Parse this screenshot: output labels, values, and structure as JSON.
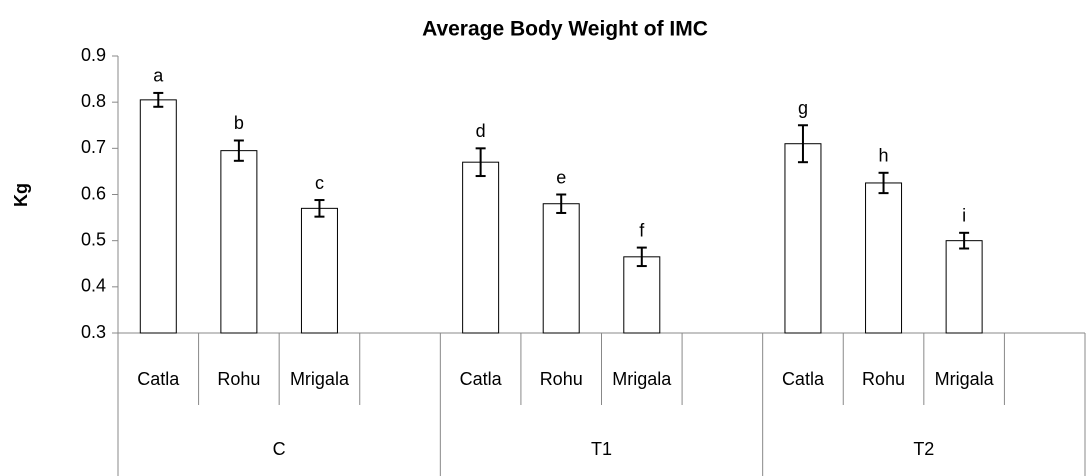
{
  "chart_data": {
    "type": "bar",
    "title": "Average Body Weight of IMC",
    "y_label": "Kg",
    "categories": [
      "Catla",
      "Rohu",
      "Mrigala",
      null,
      "Catla",
      "Rohu",
      "Mrigala",
      null,
      "Catla",
      "Rohu",
      "Mrigala",
      null
    ],
    "groups": [
      "C",
      "T1",
      "T2"
    ],
    "values": [
      0.805,
      0.695,
      0.57,
      null,
      0.67,
      0.58,
      0.465,
      null,
      0.71,
      0.625,
      0.5,
      null
    ],
    "errors": [
      0.015,
      0.022,
      0.018,
      null,
      0.03,
      0.02,
      0.02,
      null,
      0.04,
      0.022,
      0.017,
      null
    ],
    "significance_labels": [
      "a",
      "b",
      "c",
      null,
      "d",
      "e",
      "f",
      null,
      "g",
      "h",
      "i",
      null
    ],
    "color": "#ffffff",
    "ylim": [
      0.3,
      0.9
    ],
    "yticks": [
      0.3,
      0.4,
      0.5,
      0.6,
      0.7,
      0.8,
      0.9
    ],
    "grid": false
  }
}
